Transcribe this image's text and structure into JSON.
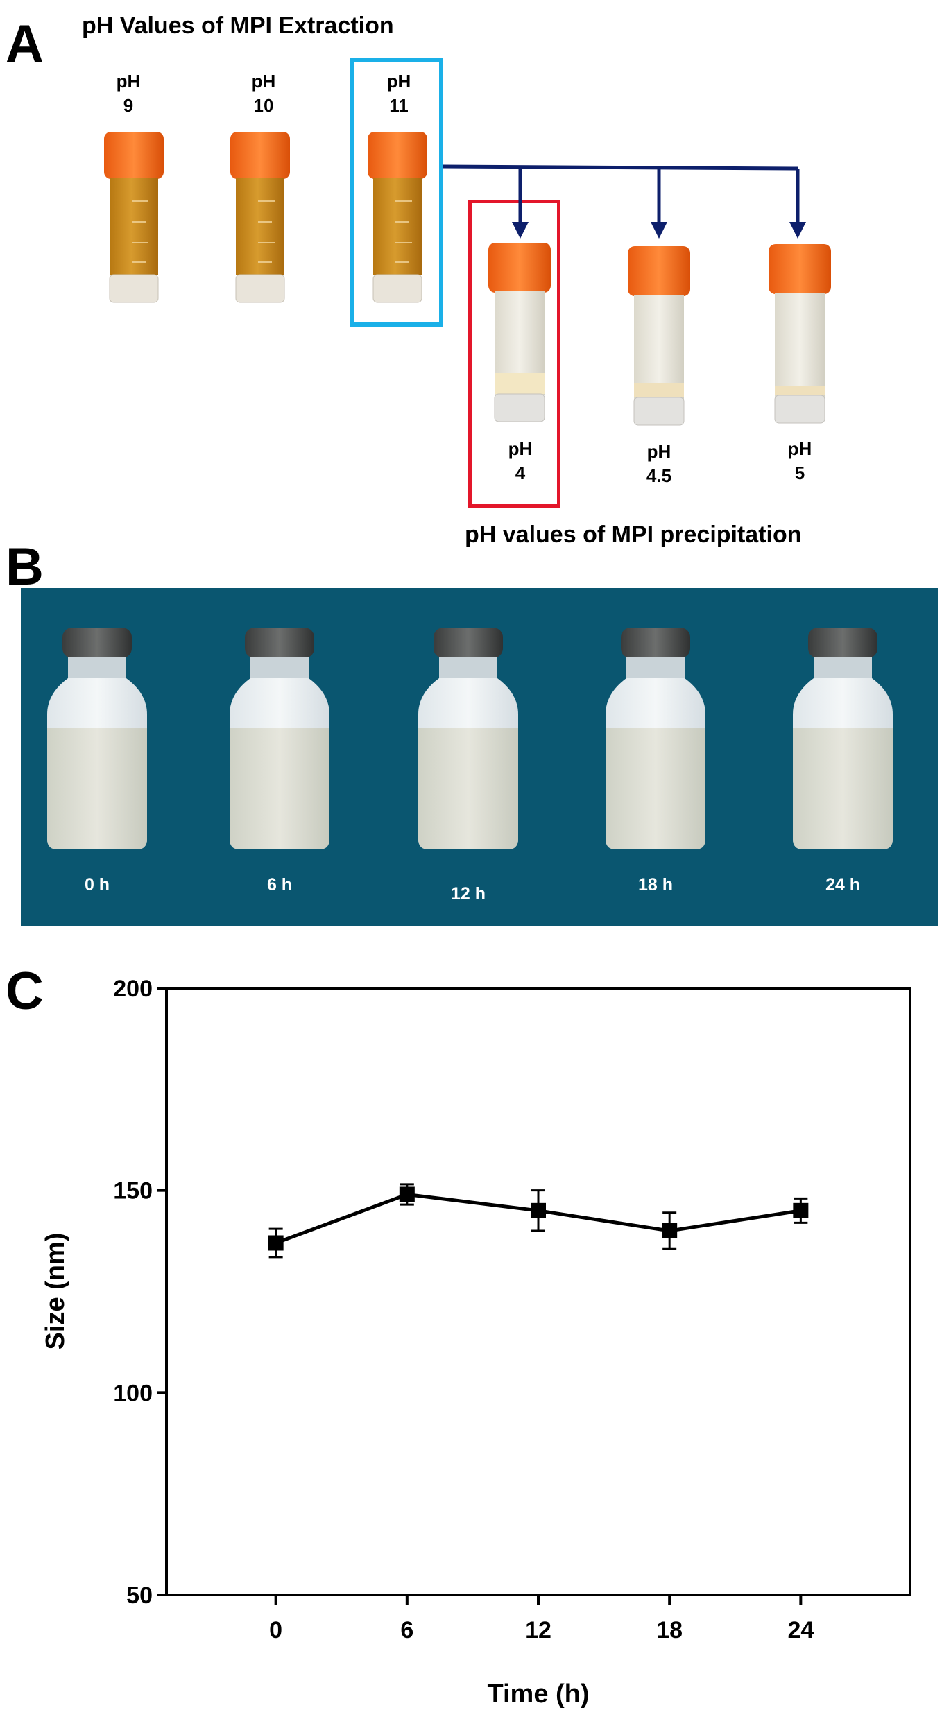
{
  "panel_a": {
    "letter": "A",
    "title": "pH Values of MPI Extraction",
    "extraction_tubes": [
      {
        "ph_label": "pH",
        "value": "9"
      },
      {
        "ph_label": "pH",
        "value": "10"
      },
      {
        "ph_label": "pH",
        "value": "11"
      }
    ],
    "precipitation_tubes": [
      {
        "ph_label": "pH",
        "value": "4"
      },
      {
        "ph_label": "pH",
        "value": "4.5"
      },
      {
        "ph_label": "pH",
        "value": "5"
      }
    ],
    "precipitation_caption": "pH values of MPI precipitation",
    "colors": {
      "highlight_extraction": "#1ab0e8",
      "highlight_precipitation": "#e3162a",
      "arrow": "#0d1f6b",
      "cap": "#f06a1a",
      "extract_liquid": "#c98a1c"
    }
  },
  "panel_b": {
    "letter": "B",
    "time_labels": [
      "0 h",
      "6 h",
      "12 h",
      "18 h",
      "24 h"
    ],
    "background_color": "#0a5670"
  },
  "panel_c": {
    "letter": "C"
  },
  "chart_data": {
    "type": "line",
    "x": [
      0,
      6,
      12,
      18,
      24
    ],
    "y": [
      137,
      149,
      145,
      140,
      145
    ],
    "y_error": [
      3.5,
      2.5,
      5,
      4.5,
      3
    ],
    "xticks": [
      "0",
      "6",
      "12",
      "18",
      "24"
    ],
    "yticks": [
      "50",
      "100",
      "150",
      "200"
    ],
    "xlabel": "Time (h)",
    "ylabel": "Size (nm)",
    "xlim": [
      -5,
      29
    ],
    "ylim": [
      50,
      200
    ],
    "marker": "square",
    "color": "#000000"
  }
}
